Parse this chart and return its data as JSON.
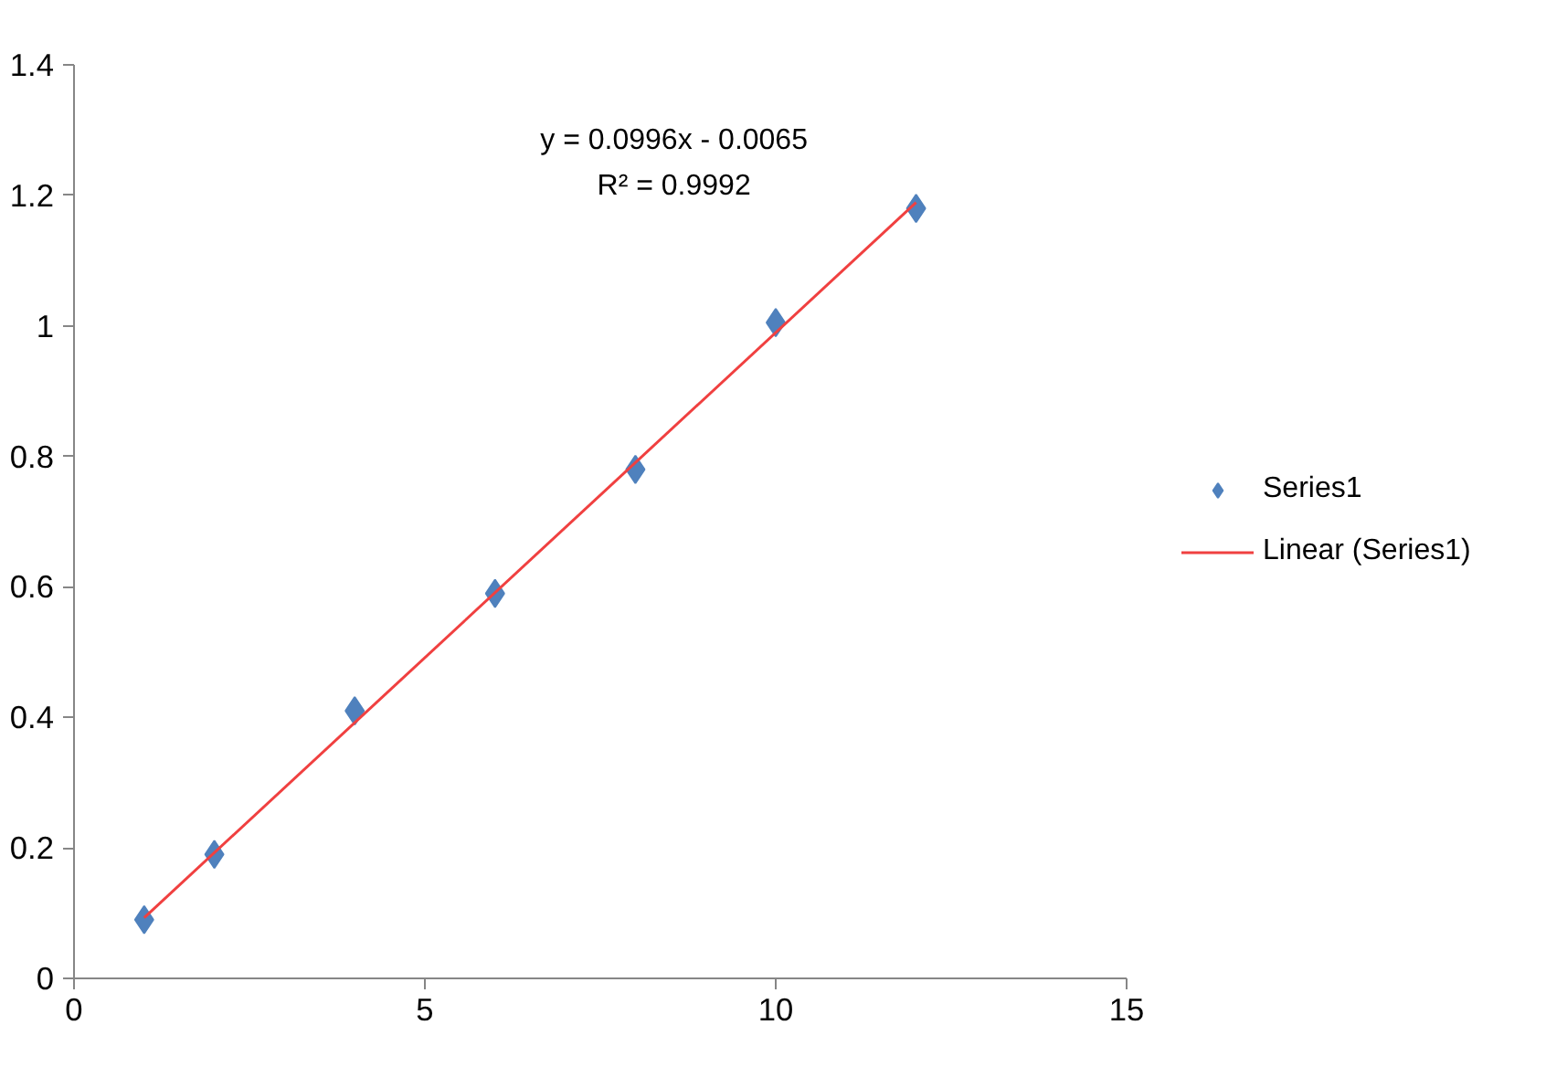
{
  "chart_data": {
    "type": "scatter",
    "xlim": [
      0,
      15
    ],
    "ylim": [
      0,
      1.4
    ],
    "xticks": [
      0,
      5,
      10,
      15
    ],
    "yticks": [
      0,
      0.2,
      0.4,
      0.6,
      0.8,
      1,
      1.2,
      1.4
    ],
    "grid": false,
    "legend": "right",
    "annotations": [
      "y = 0.0996x - 0.0065",
      "R² = 0.9992"
    ],
    "series": [
      {
        "name": "Series1",
        "type": "scatter",
        "marker": "diamond",
        "color": "#4f81bd",
        "x": [
          1,
          2,
          4,
          6,
          8,
          10,
          12
        ],
        "values": [
          0.09,
          0.19,
          0.41,
          0.59,
          0.78,
          1.005,
          1.18
        ]
      },
      {
        "name": "Linear (Series1)",
        "type": "line",
        "color": "#f04040",
        "x": [
          1,
          12
        ],
        "values": [
          0.093,
          1.189
        ]
      }
    ]
  }
}
